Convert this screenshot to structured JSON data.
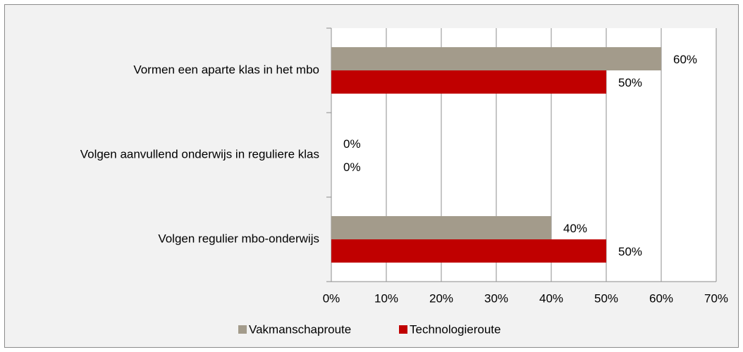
{
  "chart_data": {
    "type": "barh",
    "categories": [
      "Vormen een aparte klas in het mbo",
      "Volgen aanvullend onderwijs in reguliere klas",
      "Volgen regulier mbo-onderwijs"
    ],
    "series": [
      {
        "name": "Vakmanschaproute",
        "color": "#a39b8b",
        "values": [
          60,
          0,
          40
        ],
        "value_labels": [
          "60%",
          "0%",
          "40%"
        ]
      },
      {
        "name": "Technologieroute",
        "color": "#c00000",
        "values": [
          50,
          0,
          50
        ],
        "value_labels": [
          "50%",
          "0%",
          "50%"
        ]
      }
    ],
    "xlim": [
      0,
      70
    ],
    "xticks": [
      {
        "value": 0,
        "label": "0%"
      },
      {
        "value": 10,
        "label": "10%"
      },
      {
        "value": 20,
        "label": "20%"
      },
      {
        "value": 30,
        "label": "30%"
      },
      {
        "value": 40,
        "label": "40%"
      },
      {
        "value": 50,
        "label": "50%"
      },
      {
        "value": 60,
        "label": "60%"
      },
      {
        "value": 70,
        "label": "70%"
      }
    ],
    "grid": true,
    "legend": "bottom"
  }
}
